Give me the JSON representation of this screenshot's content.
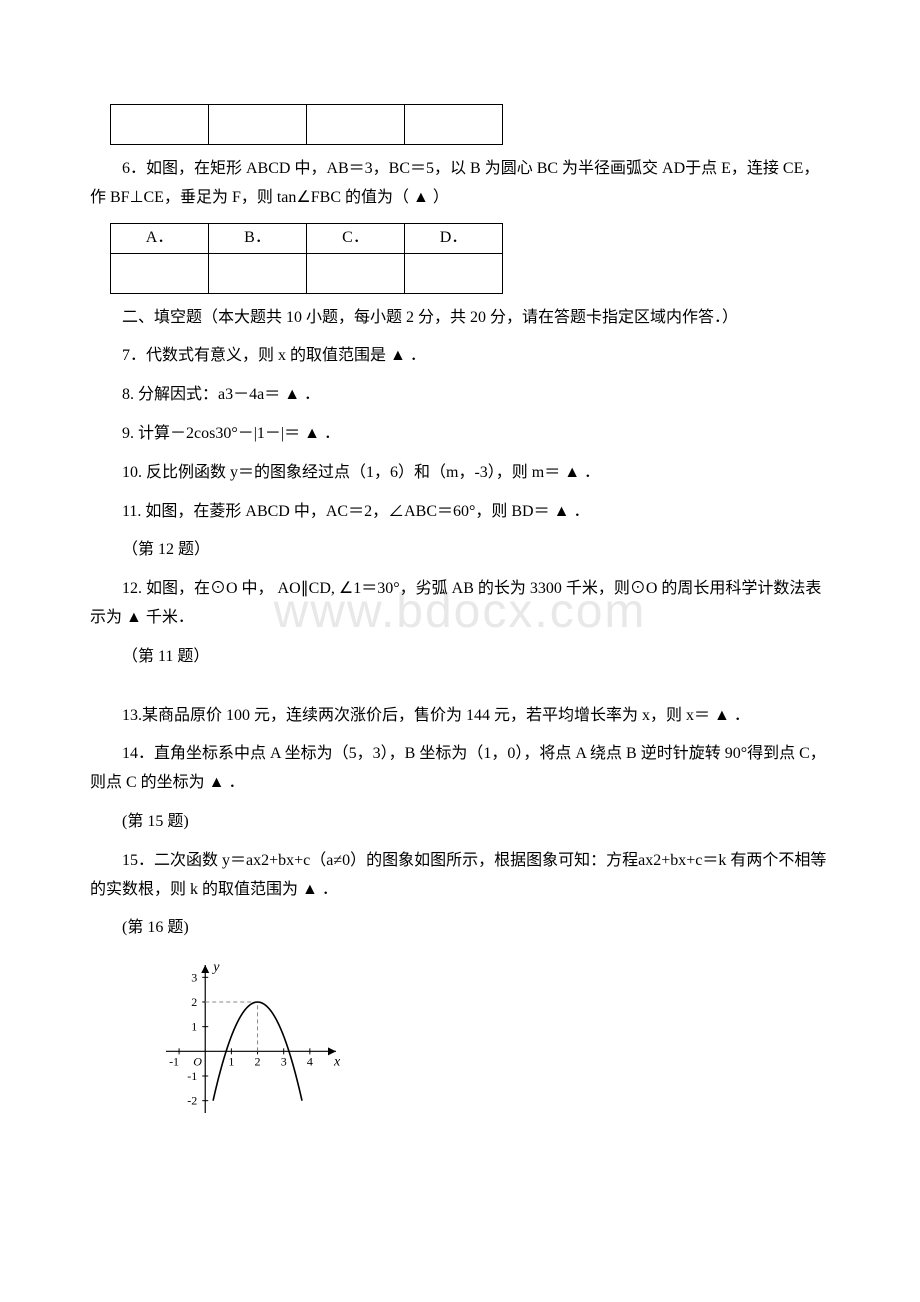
{
  "q5_opts": {
    "a": "",
    "b": "",
    "c": "",
    "d": ""
  },
  "q6_text": "6．如图，在矩形 ABCD 中，AB＝3，BC＝5，以 B 为圆心 BC 为半径画弧交 AD于点 E，连接 CE，作 BF⊥CE，垂足为 F，则 tan∠FBC 的值为（ ▲ ）",
  "q6_opts": {
    "a": "A．",
    "b": "B．",
    "c": "C．",
    "d": "D．"
  },
  "section2": "二、填空题（本大题共 10 小题，每小题 2 分，共 20 分，请在答题卡指定区域内作答．）",
  "q7": "7．代数式有意义，则 x 的取值范围是  ▲  ．",
  "q8": "8. 分解因式：a3－4a＝  ▲  ．",
  "q9": "9. 计算－2cos30°－|1－|＝  ▲  ．",
  "q10": "10. 反比例函数 y＝的图象经过点（1，6）和（m，-3），则 m＝  ▲  ．",
  "q11": "11. 如图，在菱形 ABCD 中，AC＝2，∠ABC＝60°，则 BD＝  ▲  ．",
  "ref12": "（第 12 题）",
  "q12": "12. 如图，在⊙O 中， AO∥CD, ∠1＝30°，劣弧 AB 的长为 3300 千米，则⊙O 的周长用科学计数法表示为  ▲  千米．",
  "ref11": "（第 11 题）",
  "q13": "13.某商品原价 100 元，连续两次涨价后，售价为 144 元，若平均增长率为 x，则 x＝  ▲  ．",
  "q14": "14．直角坐标系中点 A 坐标为（5，3），B 坐标为（1，0），将点 A 绕点 B 逆时针旋转 90°得到点 C，则点 C 的坐标为  ▲  ．",
  "ref15": "(第 15 题)",
  "q15": "15．二次函数 y＝ax2+bx+c（a≠0）的图象如图所示，根据图象可知：方程ax2+bx+c＝k 有两个不相等的实数根，则 k 的取值范围为  ▲  ．",
  "ref16": "(第 16 题)",
  "graph": {
    "type": "parabola",
    "xlim": [
      -1.5,
      5
    ],
    "ylim": [
      -2.5,
      3.5
    ],
    "xticks": [
      -1,
      1,
      2,
      3,
      4
    ],
    "yticks": [
      -2,
      -1,
      1,
      2,
      3
    ],
    "xlabel": "x",
    "ylabel": "y",
    "vertex": [
      2,
      2
    ],
    "axis_color": "#000000",
    "curve_color": "#000000",
    "dashed_color": "#888888",
    "tick_fontsize": 12,
    "axis_label_fontsize": 14,
    "origin_label": "O",
    "curve_x_range": [
      0.3,
      3.7
    ]
  }
}
